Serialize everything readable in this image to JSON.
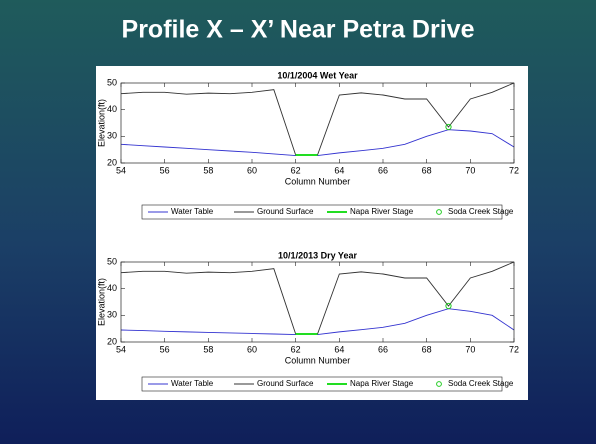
{
  "slide_title": "Profile X – X’ Near Petra Drive",
  "chart_data": [
    {
      "type": "line",
      "title": "10/1/2004 Wet Year",
      "x_label": "Column Number",
      "y_label": "Elevation(ft)",
      "xlim": [
        54,
        72
      ],
      "xticks": [
        54,
        56,
        58,
        60,
        62,
        64,
        66,
        68,
        70,
        72
      ],
      "ylim": [
        20,
        50
      ],
      "yticks": [
        20,
        30,
        40,
        50
      ],
      "series": [
        {
          "name": "Water Table",
          "color": "#3434d0",
          "x": [
            54,
            55,
            56,
            57,
            58,
            59,
            60,
            61,
            62,
            63,
            64,
            65,
            66,
            67,
            68,
            69,
            70,
            71,
            72
          ],
          "values": [
            27,
            26.5,
            26,
            25.5,
            25,
            24.5,
            24,
            23.4,
            22.8,
            22.8,
            23.8,
            24.6,
            25.5,
            27,
            30,
            32.5,
            32,
            31,
            26
          ]
        },
        {
          "name": "Ground Surface",
          "color": "#333333",
          "x": [
            54,
            55,
            56,
            57,
            58,
            59,
            60,
            61,
            62,
            63,
            64,
            65,
            66,
            67,
            68,
            69,
            70,
            71,
            72
          ],
          "values": [
            46,
            46.5,
            46.5,
            45.8,
            46.2,
            46,
            46.5,
            47.5,
            23,
            23,
            45.5,
            46.3,
            45.5,
            44,
            44,
            33.5,
            44,
            46.5,
            50
          ]
        },
        {
          "name": "Napa River Stage",
          "color": "#22dd22",
          "x": [
            62,
            63
          ],
          "values": [
            23,
            23
          ]
        },
        {
          "name": "Soda Creek Stage",
          "color": "#22cc22",
          "marker": "circle",
          "x": [
            69
          ],
          "values": [
            33.5
          ]
        }
      ]
    },
    {
      "type": "line",
      "title": "10/1/2013 Dry Year",
      "x_label": "Column Number",
      "y_label": "Elevation(ft)",
      "xlim": [
        54,
        72
      ],
      "xticks": [
        54,
        56,
        58,
        60,
        62,
        64,
        66,
        68,
        70,
        72
      ],
      "ylim": [
        20,
        50
      ],
      "yticks": [
        20,
        30,
        40,
        50
      ],
      "series": [
        {
          "name": "Water Table",
          "color": "#3434d0",
          "x": [
            54,
            55,
            56,
            57,
            58,
            59,
            60,
            61,
            62,
            63,
            64,
            65,
            66,
            67,
            68,
            69,
            70,
            71,
            72
          ],
          "values": [
            24.5,
            24.3,
            24,
            23.8,
            23.6,
            23.4,
            23.2,
            23,
            22.8,
            22.8,
            23.8,
            24.6,
            25.5,
            27,
            30,
            32.5,
            31.5,
            30,
            24.5
          ]
        },
        {
          "name": "Ground Surface",
          "color": "#333333",
          "x": [
            54,
            55,
            56,
            57,
            58,
            59,
            60,
            61,
            62,
            63,
            64,
            65,
            66,
            67,
            68,
            69,
            70,
            71,
            72
          ],
          "values": [
            46,
            46.5,
            46.5,
            45.8,
            46.2,
            46,
            46.5,
            47.5,
            23,
            23,
            45.5,
            46.3,
            45.5,
            44,
            44,
            33.5,
            44,
            46.5,
            50
          ]
        },
        {
          "name": "Napa River Stage",
          "color": "#22dd22",
          "x": [
            62,
            63
          ],
          "values": [
            23,
            23
          ]
        },
        {
          "name": "Soda Creek Stage",
          "color": "#22cc22",
          "marker": "circle",
          "x": [
            69
          ],
          "values": [
            33.5
          ]
        }
      ]
    }
  ]
}
